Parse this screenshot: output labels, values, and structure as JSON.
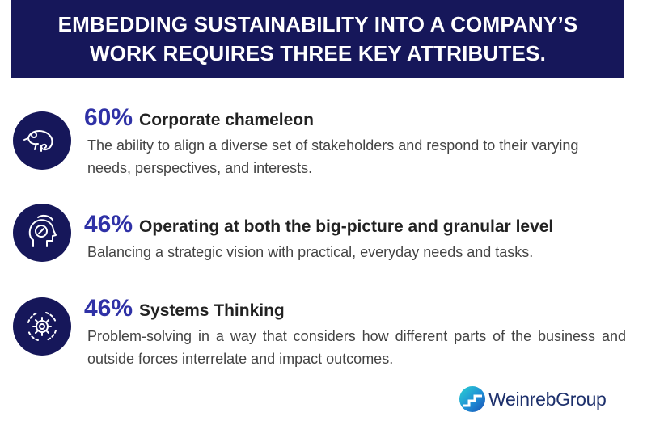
{
  "header": {
    "line1": "EMBEDDING SUSTAINABILITY INTO A COMPANY’S",
    "line2": "WORK REQUIRES THREE KEY ATTRIBUTES."
  },
  "attributes": [
    {
      "percent": "60%",
      "title": "Corporate chameleon",
      "description": "The ability to align a diverse set of stakeholders and respond to their varying needs, perspectives, and interests.",
      "icon": "chameleon-icon"
    },
    {
      "percent": "46%",
      "title": "Operating at both the big-picture and granular level",
      "description": "Balancing a strategic vision with practical, everyday needs and tasks.",
      "icon": "head-compass-icon"
    },
    {
      "percent": "46%",
      "title": "Systems Thinking",
      "description": "Problem-solving in a way that considers how different parts of the business and outside forces interrelate and impact outcomes.",
      "icon": "gear-cycle-icon"
    }
  ],
  "logo": {
    "text": "WeinrebGroup"
  },
  "colors": {
    "navy": "#16175a",
    "accent": "#2f31a6",
    "logo_text": "#1c2f6b"
  }
}
